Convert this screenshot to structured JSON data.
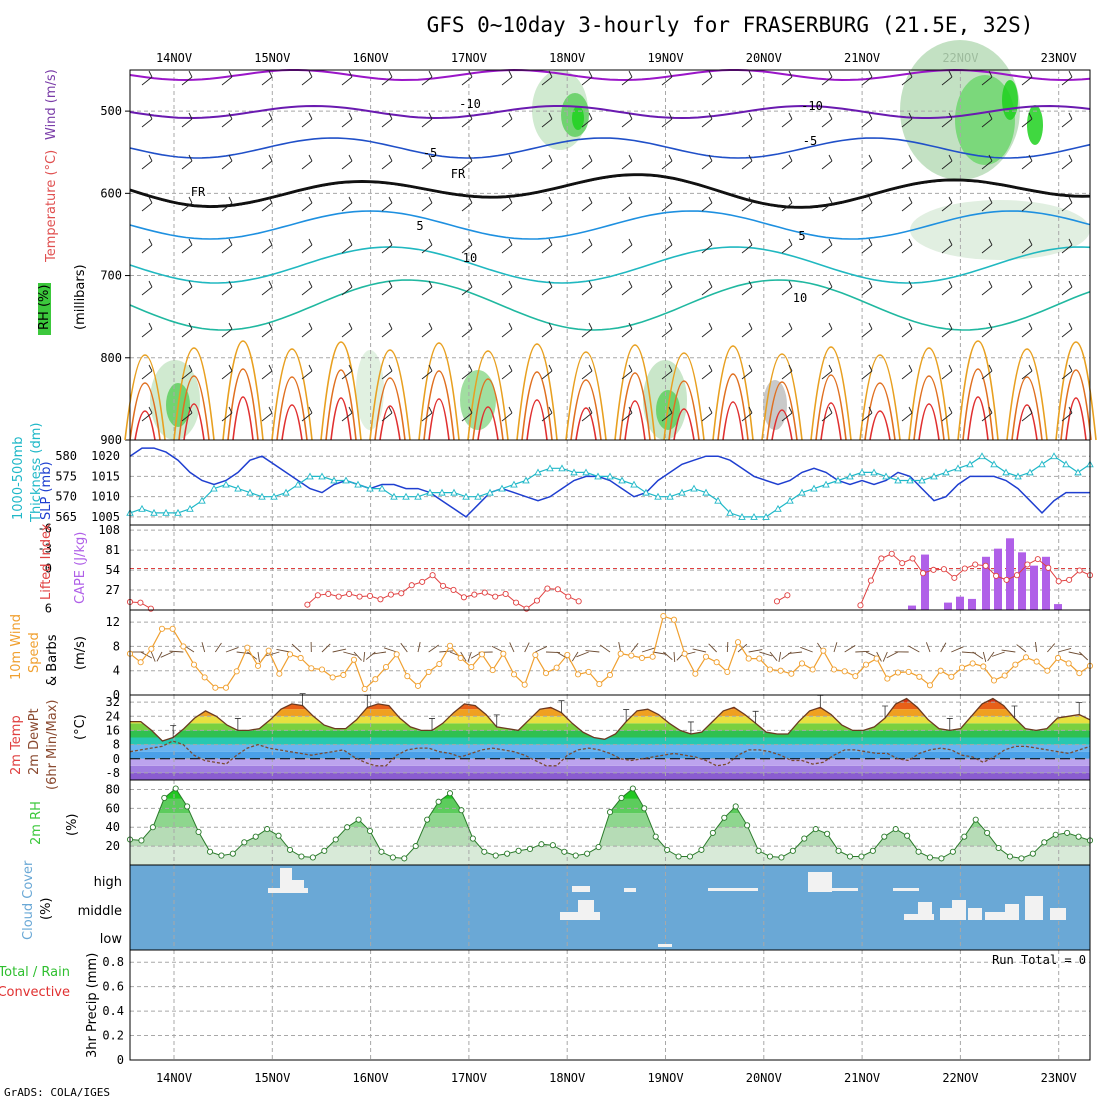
{
  "title": "GFS 0~10day 3-hourly for FRASERBURG (21.5E, 32S)",
  "credit": "GrADS: COLA/IGES",
  "run_total": "Run Total = 0",
  "dates": [
    "14NOV",
    "15NOV",
    "16NOV",
    "17NOV",
    "18NOV",
    "19NOV",
    "20NOV",
    "21NOV",
    "22NOV",
    "23NOV"
  ],
  "colors": {
    "rh": "#3cc83c",
    "temp_label": "#e05050",
    "wind_label": "#7a3ca8",
    "slp": "#1f3fd0",
    "thick": "#20b8c8",
    "li": "#e04040",
    "cape": "#b060e8",
    "wind10": "#f0a030",
    "barb": "#6b4a30",
    "cloud": "#6aa8d6",
    "precip_rain": "#2fbf2f",
    "precip_conv": "#e03030"
  },
  "chart_data": [
    {
      "type": "heatmap",
      "name": "upper-air",
      "ylabel_parts": [
        "RH (%)",
        "Temperature (°C)",
        "Wind (m/s)"
      ],
      "ylabel_right": "(millibars)",
      "y_ticks": [
        500,
        600,
        700,
        800,
        900
      ],
      "ylim": [
        450,
        900
      ],
      "isotherm_labels": [
        "-10",
        "-10",
        "-5",
        "-5",
        "FR",
        "FR",
        "5",
        "5",
        "10",
        "10"
      ]
    },
    {
      "type": "line",
      "name": "slp-thickness",
      "ylabel_left": [
        "1000-500mb",
        "Thickness (dm)"
      ],
      "ylabel_right": "SLP (mb)",
      "thick_ticks": [
        565,
        570,
        575,
        580
      ],
      "slp_ticks": [
        1005,
        1010,
        1015,
        1020
      ],
      "series": [
        {
          "name": "SLP (mb)",
          "values": [
            1020,
            1022,
            1022,
            1021,
            1019,
            1016,
            1014,
            1013,
            1014,
            1016,
            1019,
            1020,
            1018,
            1016,
            1014,
            1012,
            1011,
            1013,
            1014,
            1013,
            1012,
            1013,
            1013,
            1012,
            1012,
            1011,
            1009,
            1007,
            1005,
            1008,
            1011,
            1012,
            1011,
            1010,
            1009,
            1010,
            1012,
            1014,
            1015,
            1015,
            1014,
            1012,
            1010,
            1011,
            1014,
            1016,
            1018,
            1019,
            1020,
            1020,
            1019,
            1017,
            1015,
            1014,
            1013,
            1014,
            1016,
            1017,
            1016,
            1014,
            1013,
            1014,
            1013,
            1014,
            1016,
            1015,
            1012,
            1009,
            1010,
            1013,
            1015,
            1015,
            1015,
            1014,
            1012,
            1009,
            1006,
            1009,
            1011,
            1011,
            1011
          ]
        },
        {
          "name": "Thickness (dm)",
          "values": [
            566,
            567,
            566,
            566,
            566,
            567,
            569,
            572,
            573,
            572,
            571,
            570,
            570,
            571,
            573,
            575,
            575,
            574,
            574,
            573,
            572,
            572,
            570,
            570,
            570,
            571,
            571,
            571,
            570,
            570,
            571,
            572,
            573,
            574,
            576,
            577,
            577,
            576,
            576,
            575,
            575,
            574,
            573,
            571,
            570,
            570,
            571,
            572,
            571,
            569,
            566,
            565,
            565,
            565,
            567,
            569,
            571,
            572,
            573,
            574,
            575,
            576,
            576,
            575,
            574,
            574,
            574,
            575,
            576,
            577,
            578,
            580,
            578,
            576,
            575,
            576,
            578,
            580,
            578,
            576,
            578
          ]
        }
      ]
    },
    {
      "type": "bar",
      "name": "cape-li",
      "ylabel_left": "Lifted Index",
      "ylabel_right": "CAPE (J/kg)",
      "li_ticks": [
        "6",
        "0",
        "-3",
        "-6"
      ],
      "cape_ticks": [
        27,
        54,
        81,
        108
      ],
      "series": [
        {
          "name": "Lifted Index",
          "values": [
            5.0,
            5.1,
            6.0,
            null,
            null,
            null,
            null,
            null,
            null,
            null,
            null,
            null,
            null,
            null,
            null,
            null,
            null,
            5.4,
            4.0,
            3.8,
            4.2,
            3.8,
            4.2,
            4.1,
            4.6,
            3.9,
            3.7,
            2.5,
            2.0,
            1.0,
            2.6,
            3.2,
            4.3,
            3.9,
            3.6,
            4.2,
            3.8,
            5.1,
            6.0,
            4.8,
            3.0,
            3.1,
            4.2,
            4.9,
            null,
            null,
            null,
            null,
            null,
            null,
            null,
            null,
            null,
            null,
            null,
            null,
            null,
            null,
            null,
            null,
            null,
            null,
            4.9,
            4.0,
            null,
            null,
            null,
            null,
            null,
            null,
            5.5,
            1.8,
            -1.5,
            -2.2,
            -0.8,
            -1.5,
            0.7,
            0.2,
            0.1,
            1.4,
            0.0,
            -0.6,
            -0.4,
            1.1,
            1.7,
            1.0,
            -0.6,
            -1.4,
            -0.1,
            1.9,
            1.7,
            0.3,
            1.0
          ]
        },
        {
          "name": "CAPE (J/kg)",
          "values": [
            0,
            0,
            0,
            0,
            0,
            0,
            0,
            0,
            0,
            0,
            0,
            0,
            0,
            0,
            0,
            0,
            0,
            0,
            0,
            0,
            0,
            0,
            0,
            0,
            0,
            0,
            0,
            0,
            0,
            0,
            0,
            0,
            0,
            0,
            0,
            0,
            0,
            0,
            0,
            0,
            0,
            0,
            0,
            0,
            0,
            0,
            0,
            0,
            0,
            0,
            0,
            0,
            0,
            0,
            0,
            0,
            0,
            0,
            0,
            0,
            0,
            0,
            0,
            0,
            0,
            0,
            0,
            0,
            0,
            0,
            0,
            0,
            0,
            0,
            0,
            0,
            0,
            0,
            0,
            0,
            0,
            0,
            0,
            0,
            0,
            0,
            0,
            0,
            0,
            0,
            0
          ]
        }
      ]
    },
    {
      "type": "line",
      "name": "wind10m",
      "ylabel_left": [
        "10m Wind",
        "Speed",
        "& Barbs"
      ],
      "ylabel_right": "(m/s)",
      "y_ticks": [
        0,
        4,
        8,
        12
      ],
      "ylim": [
        0,
        14
      ],
      "series": [
        {
          "name": "10m Wind Speed",
          "values": [
            6.8,
            5.4,
            7.6,
            10.9,
            10.9,
            8.0,
            5.0,
            2.9,
            1.2,
            1.2,
            3.9,
            7.8,
            4.8,
            7.3,
            3.5,
            6.7,
            6.1,
            4.4,
            4.2,
            2.9,
            3.3,
            5.8,
            1.0,
            2.6,
            4.6,
            6.7,
            3.1,
            1.5,
            3.8,
            5.1,
            8.1,
            6.1,
            4.6,
            6.7,
            4.1,
            6.8,
            3.4,
            1.7,
            6.6,
            3.6,
            4.5,
            6.6,
            3.4,
            3.8,
            1.8,
            3.3,
            6.8,
            6.5,
            6.1,
            6.3,
            13.0,
            12.4,
            6.8,
            3.5,
            6.3,
            5.4,
            3.8,
            8.7,
            6.0,
            6.0,
            4.2,
            4.0,
            3.5,
            5.2,
            4.2,
            7.3,
            4.2,
            3.9,
            3.1,
            5.0,
            6.0,
            2.7,
            3.7,
            3.8,
            3.0,
            1.6,
            4.0,
            3.0,
            4.5,
            5.2,
            4.7,
            2.4,
            3.2,
            5.0,
            6.2,
            5.5,
            4.0,
            6.1,
            5.2,
            3.6,
            4.8
          ]
        }
      ]
    },
    {
      "type": "area",
      "name": "temp-dewpt",
      "ylabel_left": [
        "2m Temp",
        "2m DewPt",
        "(6hr Min/Max)"
      ],
      "ylabel_right": "(°C)",
      "y_ticks": [
        "-8",
        "0",
        "8",
        "16",
        "24",
        "32"
      ],
      "ylim": [
        -12,
        36
      ],
      "series": [
        {
          "name": "2m Temp",
          "values": [
            21,
            21,
            16,
            10,
            12,
            17,
            23,
            27,
            24,
            19,
            16,
            16,
            17,
            22,
            28,
            31,
            30,
            24,
            19,
            17,
            17,
            22,
            29,
            31,
            30,
            23,
            18,
            16,
            16,
            20,
            26,
            31,
            30,
            25,
            18,
            17,
            16,
            22,
            28,
            29,
            26,
            20,
            15,
            12,
            11,
            14,
            21,
            27,
            28,
            25,
            20,
            16,
            14,
            15,
            21,
            27,
            29,
            25,
            20,
            15,
            14,
            14,
            21,
            27,
            29,
            25,
            19,
            16,
            16,
            18,
            23,
            31,
            34,
            29,
            22,
            17,
            16,
            17,
            24,
            31,
            34,
            30,
            23,
            17,
            16,
            17,
            23,
            24,
            25,
            22
          ]
        },
        {
          "name": "2m DewPt",
          "values": [
            4,
            5,
            6,
            7,
            10,
            8,
            2,
            -1,
            -2,
            -3,
            2,
            6,
            8,
            6,
            5,
            4,
            3,
            2,
            3,
            4,
            5,
            1,
            -2,
            -4,
            -4,
            2,
            5,
            6,
            6,
            4,
            3,
            1,
            3,
            5,
            6,
            5,
            4,
            2,
            -1,
            -4,
            -4,
            2,
            5,
            6,
            5,
            3,
            0,
            -1,
            0,
            1,
            2,
            3,
            2,
            1,
            -1,
            -4,
            -3,
            2,
            5,
            5,
            4,
            2,
            -1,
            -1,
            -3,
            -2,
            2,
            5,
            5,
            4,
            3,
            3,
            0,
            -1,
            3,
            5,
            6,
            5,
            2,
            1,
            -2,
            1,
            5,
            7,
            7,
            6,
            5,
            4,
            3,
            5,
            7
          ]
        }
      ]
    },
    {
      "type": "area",
      "name": "rh2m",
      "ylabel_left": "2m RH",
      "ylabel_right": "(%)",
      "y_ticks": [
        20,
        40,
        60,
        80
      ],
      "ylim": [
        0,
        90
      ],
      "series": [
        {
          "name": "2m RH",
          "values": [
            27,
            26,
            40,
            71,
            81,
            62,
            35,
            14,
            10,
            12,
            24,
            30,
            38,
            31,
            16,
            9,
            8,
            15,
            27,
            40,
            48,
            36,
            14,
            8,
            7,
            20,
            48,
            67,
            76,
            58,
            28,
            14,
            10,
            12,
            15,
            17,
            22,
            21,
            14,
            10,
            12,
            19,
            56,
            71,
            81,
            60,
            30,
            16,
            9,
            9,
            16,
            34,
            50,
            62,
            42,
            15,
            9,
            8,
            15,
            28,
            38,
            33,
            15,
            9,
            9,
            15,
            30,
            38,
            31,
            14,
            8,
            7,
            14,
            30,
            48,
            34,
            18,
            9,
            7,
            12,
            24,
            32,
            34,
            30,
            26
          ]
        }
      ]
    },
    {
      "type": "heatmap",
      "name": "cloud-cover",
      "ylabel_left": [
        "Cloud Cover",
        "(%)"
      ],
      "levels": [
        "high",
        "middle",
        "low"
      ]
    },
    {
      "type": "line",
      "name": "precip",
      "ylabel_left": [
        "Total / Rain",
        "Convective"
      ],
      "ylabel_right": "3hr Precip (mm)",
      "y_ticks": [
        "0",
        "0.2",
        "0.4",
        "0.6",
        "0.8"
      ],
      "ylim": [
        0,
        0.9
      ],
      "series": [
        {
          "name": "3hr Precip (mm)",
          "values": []
        }
      ]
    }
  ]
}
